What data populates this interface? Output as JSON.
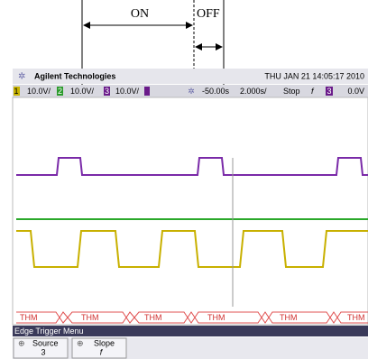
{
  "annotations": {
    "on": "ON",
    "off": "OFF"
  },
  "header": {
    "brand": "Agilent Technologies",
    "datetime": "THU JAN 21 14:05:17 2010"
  },
  "status_bar": {
    "channels": [
      {
        "number": "1",
        "scale": "10.0V/"
      },
      {
        "number": "2",
        "scale": "10.0V/"
      },
      {
        "number": "3",
        "scale": "10.0V/"
      }
    ],
    "time_offset": "-50.00s",
    "time_scale": "2.000s/",
    "run_state": "Stop",
    "trigger_slope": "f",
    "trigger_channel": "3",
    "trigger_level": "0.0V"
  },
  "bus_labels": [
    "THM",
    "THM",
    "THM",
    "THM",
    "THM",
    "THM"
  ],
  "menu": {
    "title": "Edge Trigger Menu",
    "buttons": [
      {
        "label": "Source",
        "value": "3"
      },
      {
        "label": "Slope",
        "value": "f"
      }
    ]
  }
}
